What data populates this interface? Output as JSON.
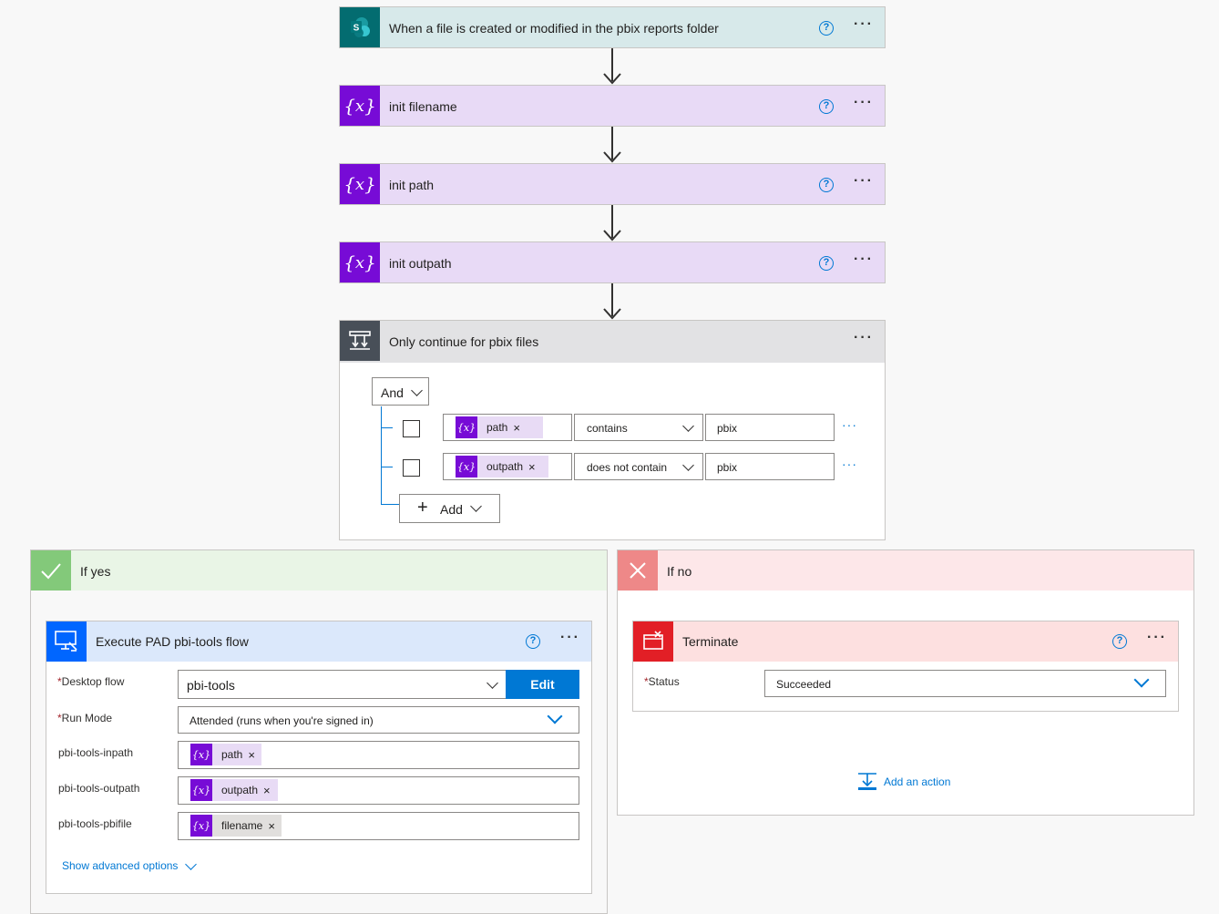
{
  "steps": [
    {
      "title": "When a file is created or modified in the pbix reports folder",
      "icon": "sharepoint-icon",
      "color": "#d7e9ea"
    },
    {
      "title": "init filename",
      "icon": "variable-icon",
      "color": "#e8daf6"
    },
    {
      "title": "init path",
      "icon": "variable-icon",
      "color": "#e8daf6"
    },
    {
      "title": "init outpath",
      "icon": "variable-icon",
      "color": "#e8daf6"
    }
  ],
  "condition": {
    "title": "Only continue for pbix files",
    "operator": "And",
    "rows": [
      {
        "token": "path",
        "op": "contains",
        "value": "pbix"
      },
      {
        "token": "outpath",
        "op": "does not contain",
        "value": "pbix"
      }
    ],
    "add_label": "Add"
  },
  "yes_branch": {
    "label": "If yes",
    "action": {
      "title": "Execute PAD pbi-tools flow",
      "desktop_flow_label": "Desktop flow",
      "desktop_flow_value": "pbi-tools",
      "edit_label": "Edit",
      "run_mode_label": "Run Mode",
      "run_mode_value": "Attended (runs when you're signed in)",
      "params": [
        {
          "label": "pbi-tools-inpath",
          "token": "path"
        },
        {
          "label": "pbi-tools-outpath",
          "token": "outpath"
        },
        {
          "label": "pbi-tools-pbifile",
          "token": "filename"
        }
      ],
      "advanced_label": "Show advanced options"
    }
  },
  "no_branch": {
    "label": "If no",
    "action": {
      "title": "Terminate",
      "status_label": "Status",
      "status_value": "Succeeded"
    },
    "add_action_label": "Add an action"
  },
  "colors": {
    "accent": "#0078d4",
    "variable": "#770bd6",
    "yes": "#83c97a",
    "no": "#ee8888",
    "terminate": "#e21f26"
  }
}
